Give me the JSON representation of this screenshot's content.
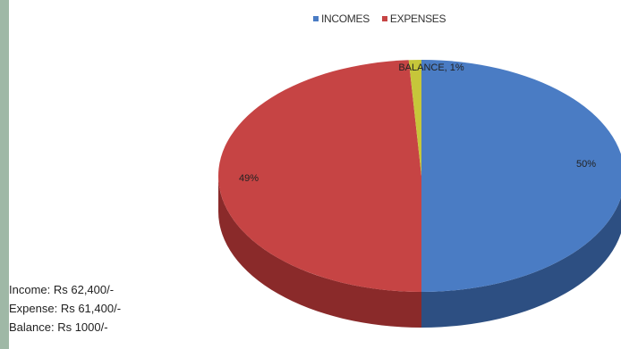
{
  "colors": {
    "strip": "#9fb8a6",
    "incomes": "#4a7cc4",
    "incomes_side": "#2d4f82",
    "expenses": "#c64444",
    "expenses_side": "#8a2a2a",
    "balance": "#c6c63a",
    "balance_side": "#8c8a22"
  },
  "legend": [
    {
      "label": "INCOMES",
      "color": "#4a7cc4"
    },
    {
      "label": "EXPENSES",
      "color": "#c64444"
    }
  ],
  "chart_data": {
    "type": "pie",
    "title": "",
    "slices": [
      {
        "name": "INCOMES",
        "value": 50,
        "label": "50%"
      },
      {
        "name": "EXPENSES",
        "value": 49,
        "label": "49%"
      },
      {
        "name": "BALANCE",
        "value": 1,
        "label": "BALANCE, 1%"
      }
    ],
    "legend_position": "top"
  },
  "summary": {
    "income": "Income: Rs 62,400/-",
    "expense": "Expense: Rs 61,400/-",
    "balance": "Balance: Rs 1000/-"
  }
}
